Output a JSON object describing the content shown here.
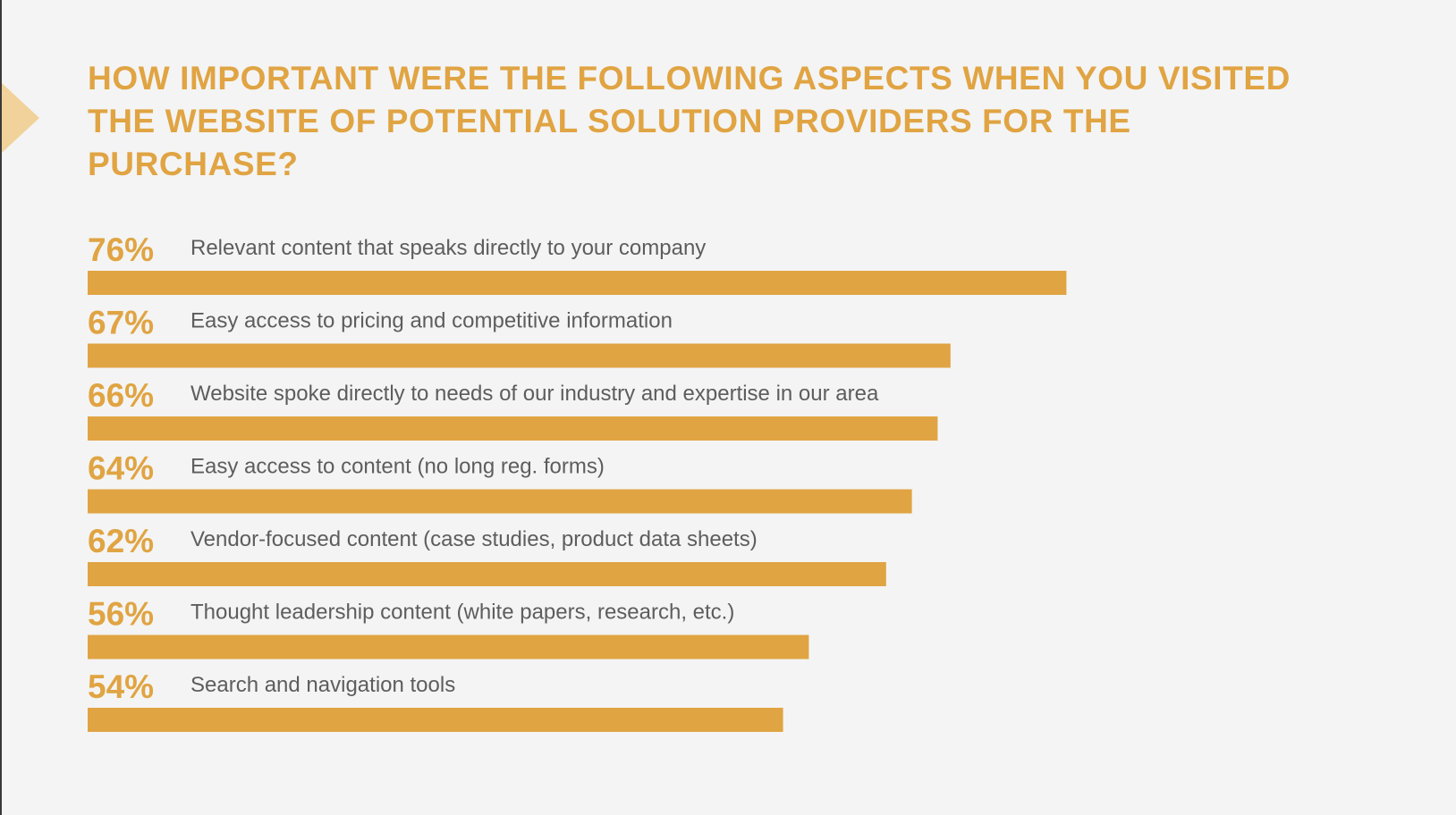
{
  "title": "HOW IMPORTANT WERE THE FOLLOWING ASPECTS WHEN YOU VISITED THE WEBSITE OF POTENTIAL SOLUTION PROVIDERS FOR THE PURCHASE?",
  "colors": {
    "accent": "#e0a443",
    "marker": "#f0d29a",
    "label_text": "#5d5d5d",
    "background": "#f4f4f4"
  },
  "chart_data": {
    "type": "bar",
    "orientation": "horizontal",
    "title": "HOW IMPORTANT WERE THE FOLLOWING ASPECTS WHEN YOU VISITED THE WEBSITE OF POTENTIAL SOLUTION PROVIDERS FOR THE PURCHASE?",
    "categories": [
      "Relevant content that speaks directly to your company",
      "Easy access to pricing and competitive information",
      "Website spoke directly to needs of our industry and expertise in our area",
      "Easy access to content (no long reg. forms)",
      "Vendor-focused content (case studies, product data sheets)",
      "Thought leadership content (white papers, research, etc.)",
      "Search and navigation tools"
    ],
    "values": [
      76,
      67,
      66,
      64,
      62,
      56,
      54
    ],
    "value_labels": [
      "76%",
      "67%",
      "66%",
      "64%",
      "62%",
      "56%",
      "54%"
    ],
    "unit": "%",
    "xlim": [
      0,
      100
    ],
    "grid": false,
    "legend": "none"
  }
}
